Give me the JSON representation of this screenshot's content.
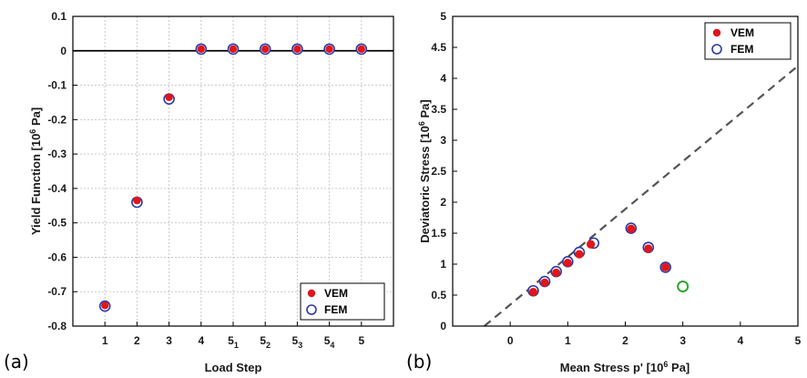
{
  "colors": {
    "vem": "#e0161b",
    "fem_edge": "#2b3aa6",
    "fem_green": "#2fa52f",
    "grid": "#c9c9c9",
    "dash": "#555555"
  },
  "chart_data": [
    {
      "type": "scatter",
      "panel_label": "(a)",
      "xlabel": "Load Step",
      "ylabel": "Yield Function [10^6 Pa]",
      "ylabel_parts": {
        "pre": "Yield Function [10",
        "sup": "6",
        "post": " Pa]"
      },
      "categories": [
        {
          "base": "1",
          "sub": ""
        },
        {
          "base": "2",
          "sub": ""
        },
        {
          "base": "3",
          "sub": ""
        },
        {
          "base": "4",
          "sub": ""
        },
        {
          "base": "5",
          "sub": "1"
        },
        {
          "base": "5",
          "sub": "2"
        },
        {
          "base": "5",
          "sub": "3"
        },
        {
          "base": "5",
          "sub": "4"
        },
        {
          "base": "5",
          "sub": ""
        }
      ],
      "ylim": [
        -0.8,
        0.1
      ],
      "yticks": [
        0.1,
        0,
        -0.1,
        -0.2,
        -0.3,
        -0.4,
        -0.5,
        -0.6,
        -0.7,
        -0.8
      ],
      "ytick_labels": [
        "0.1",
        "0",
        "-0.1",
        "-0.2",
        "-0.3",
        "-0.4",
        "-0.5",
        "-0.6",
        "-0.7",
        "-0.8"
      ],
      "grid": true,
      "legend": {
        "placement": "bottom-right",
        "entries": [
          "VEM",
          "FEM"
        ]
      },
      "series": [
        {
          "name": "VEM",
          "values": [
            -0.74,
            -0.435,
            -0.135,
            0.005,
            0.005,
            0.005,
            0.005,
            0.005,
            0.005
          ]
        },
        {
          "name": "FEM",
          "values": [
            -0.742,
            -0.44,
            -0.14,
            0.005,
            0.005,
            0.005,
            0.005,
            0.005,
            0.005
          ]
        }
      ]
    },
    {
      "type": "scatter",
      "panel_label": "(b)",
      "xlabel": "Mean Stress p' [10^6 Pa]",
      "xlabel_parts": {
        "pre": "Mean Stress p' [10",
        "sup": "6",
        "post": " Pa]"
      },
      "ylabel": "Deviatoric Stress [10^6 Pa]",
      "ylabel_parts": {
        "pre": "Deviatoric Stress [10",
        "sup": "6",
        "post": " Pa]"
      },
      "xlim": [
        -1,
        5
      ],
      "ylim": [
        0,
        5
      ],
      "xticks": [
        0,
        1,
        2,
        3,
        4,
        5
      ],
      "xtick_labels": [
        "0",
        "1",
        "2",
        "3",
        "4",
        "5"
      ],
      "yticks": [
        0,
        0.5,
        1,
        1.5,
        2,
        2.5,
        3,
        3.5,
        4,
        4.5,
        5
      ],
      "ytick_labels": [
        "0",
        "0.5",
        "1",
        "1.5",
        "2",
        "2.5",
        "3",
        "3.5",
        "4",
        "4.5",
        "5"
      ],
      "grid": false,
      "legend": {
        "placement": "top-right",
        "entries": [
          "VEM",
          "FEM"
        ]
      },
      "failure_line": {
        "x": [
          -0.45,
          5
        ],
        "y": [
          0,
          4.2
        ]
      },
      "series": [
        {
          "name": "VEM",
          "x": [
            0.4,
            0.6,
            0.8,
            1.0,
            1.2,
            1.4,
            2.1,
            2.4,
            2.7
          ],
          "y": [
            0.55,
            0.7,
            0.86,
            1.02,
            1.16,
            1.32,
            1.57,
            1.25,
            0.95
          ]
        },
        {
          "name": "FEM",
          "x": [
            0.4,
            0.6,
            0.8,
            1.0,
            1.2,
            1.45,
            2.1,
            2.4,
            2.7,
            3.0
          ],
          "y": [
            0.57,
            0.72,
            0.88,
            1.04,
            1.19,
            1.34,
            1.58,
            1.27,
            0.95,
            0.64
          ]
        }
      ]
    }
  ]
}
